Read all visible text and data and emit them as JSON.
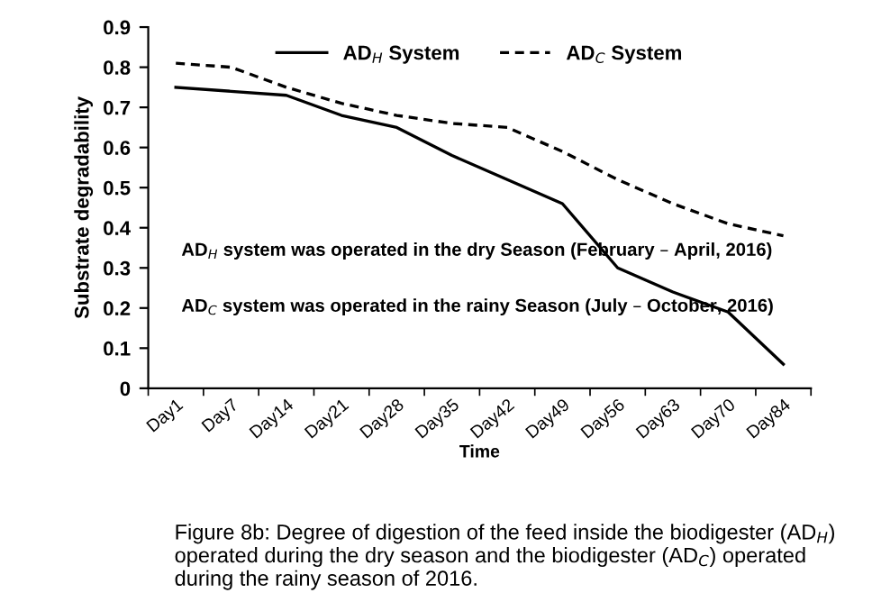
{
  "chart_data": {
    "type": "line",
    "xlabel": "Time",
    "ylabel": "Substrate degradability",
    "categories": [
      "Day1",
      "Day7",
      "Day14",
      "Day21",
      "Day28",
      "Day35",
      "Day42",
      "Day49",
      "Day56",
      "Day63",
      "Day70",
      "Day84"
    ],
    "series": [
      {
        "name": "AD$_{H}$ System",
        "color": "#000000",
        "line_style": "solid",
        "values": [
          0.75,
          0.74,
          0.73,
          0.68,
          0.65,
          0.58,
          0.52,
          0.46,
          0.3,
          0.24,
          0.19,
          0.06
        ]
      },
      {
        "name": "AD$_{C}$ System",
        "color": "#000000",
        "line_style": "dashed",
        "values": [
          0.81,
          0.8,
          0.75,
          0.71,
          0.68,
          0.66,
          0.65,
          0.59,
          0.52,
          0.46,
          0.41,
          0.38
        ]
      }
    ],
    "ylim": [
      0,
      0.9
    ],
    "yticks": [
      0,
      0.1,
      0.2,
      0.3,
      0.4,
      0.5,
      0.6,
      0.7,
      0.8,
      0.9
    ],
    "grid": false,
    "legend": "top",
    "marker": "none",
    "annotations": [
      "AD$_{H}$ system was operated in the dry Season (February – April, 2016)",
      "AD$_{C}$ system was operated in the rainy Season (July – October, 2016)",
      "Figure 8b: Degree of digestion of the feed inside the biodigester (AD$_{H}$) operated during the dry season and the biodigester (AD$_{C}$) operated during the rainy season of 2016."
    ]
  }
}
